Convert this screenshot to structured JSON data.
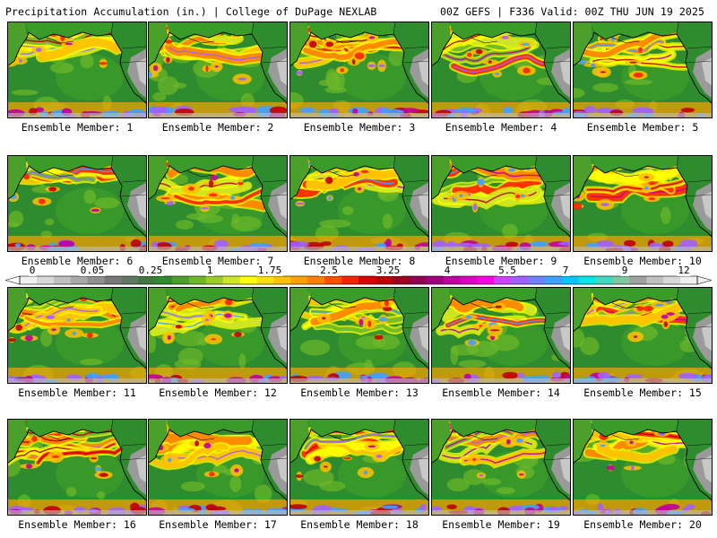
{
  "header": {
    "left_title": "Precipitation Accumulation (in.) | College of DuPage NEXLAB",
    "right_title": "00Z GEFS | F336 Valid: 00Z THU JUN 19 2025"
  },
  "panels": [
    {
      "label": "Ensemble Member: 1",
      "seed": 11
    },
    {
      "label": "Ensemble Member: 2",
      "seed": 23
    },
    {
      "label": "Ensemble Member: 3",
      "seed": 37
    },
    {
      "label": "Ensemble Member: 4",
      "seed": 41
    },
    {
      "label": "Ensemble Member: 5",
      "seed": 53
    },
    {
      "label": "Ensemble Member: 6",
      "seed": 67
    },
    {
      "label": "Ensemble Member: 7",
      "seed": 71
    },
    {
      "label": "Ensemble Member: 8",
      "seed": 83
    },
    {
      "label": "Ensemble Member: 9",
      "seed": 97
    },
    {
      "label": "Ensemble Member: 10",
      "seed": 101
    },
    {
      "label": "Ensemble Member: 11",
      "seed": 113
    },
    {
      "label": "Ensemble Member: 12",
      "seed": 127
    },
    {
      "label": "Ensemble Member: 13",
      "seed": 131
    },
    {
      "label": "Ensemble Member: 14",
      "seed": 149
    },
    {
      "label": "Ensemble Member: 15",
      "seed": 151
    },
    {
      "label": "Ensemble Member: 16",
      "seed": 163
    },
    {
      "label": "Ensemble Member: 17",
      "seed": 173
    },
    {
      "label": "Ensemble Member: 18",
      "seed": 181
    },
    {
      "label": "Ensemble Member: 19",
      "seed": 191
    },
    {
      "label": "Ensemble Member: 20",
      "seed": 197
    }
  ],
  "colorbar": {
    "labels": [
      "0",
      "0.05",
      "0.25",
      "1",
      "1.75",
      "2.5",
      "3.25",
      "4",
      "5.5",
      "7",
      "9",
      "12"
    ],
    "colors": [
      "#f0f0f0",
      "#d8d8d8",
      "#c0c0c0",
      "#a8a8a8",
      "#909090",
      "#787878",
      "#607860",
      "#407840",
      "#2e8b2e",
      "#4aa02a",
      "#6db82a",
      "#9ccc28",
      "#cde626",
      "#ffff00",
      "#ffe000",
      "#ffc000",
      "#ffa000",
      "#ff8000",
      "#ff5000",
      "#ff2000",
      "#e00000",
      "#c00000",
      "#a00020",
      "#900050",
      "#a00080",
      "#c000a0",
      "#e000c0",
      "#ff00e0",
      "#d040ff",
      "#a060ff",
      "#7080ff",
      "#40a0ff",
      "#00c8ff",
      "#00e8e8",
      "#40d8c0",
      "#80c8a0",
      "#a0a0a0",
      "#c0c0c0",
      "#d8d8d8",
      "#f0f0f0"
    ]
  },
  "map_palette": {
    "ocean_base": "#2e8b2e",
    "coast_line": "#000000",
    "land_dry": "#9a9a9a"
  }
}
